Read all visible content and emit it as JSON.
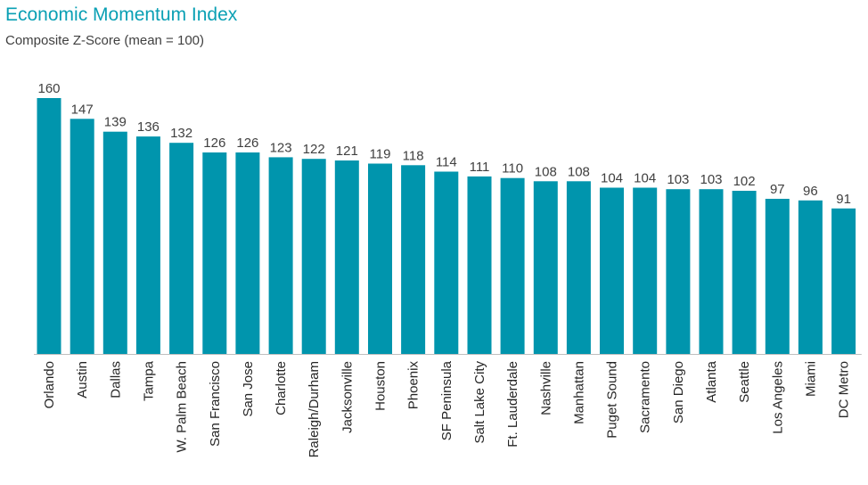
{
  "chart_data": {
    "type": "bar",
    "title": "Economic Momentum Index",
    "subtitle": "Composite Z-Score (mean = 100)",
    "xlabel": "",
    "ylabel": "",
    "categories": [
      "Orlando",
      "Austin",
      "Dallas",
      "Tampa",
      "W. Palm Beach",
      "San Francisco",
      "San Jose",
      "Charlotte",
      "Raleigh/Durham",
      "Jacksonville",
      "Houston",
      "Phoenix",
      "SF Peninsula",
      "Salt Lake City",
      "Ft. Lauderdale",
      "Nashville",
      "Manhattan",
      "Puget Sound",
      "Sacramento",
      "San Diego",
      "Atlanta",
      "Seattle",
      "Los Angeles",
      "Miami",
      "DC Metro"
    ],
    "values": [
      160,
      147,
      139,
      136,
      132,
      126,
      126,
      123,
      122,
      121,
      119,
      118,
      114,
      111,
      110,
      108,
      108,
      104,
      104,
      103,
      103,
      102,
      97,
      96,
      91
    ],
    "ylim": [
      0,
      160
    ],
    "grid": false,
    "legend": "none",
    "bar_color": "#0095ad",
    "data_labels": true
  }
}
